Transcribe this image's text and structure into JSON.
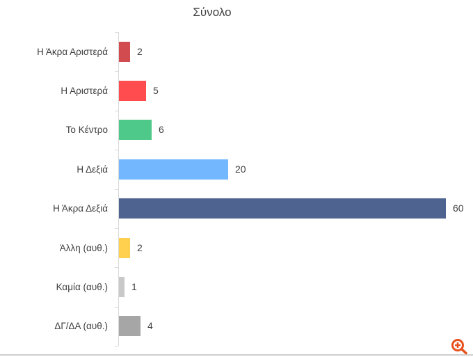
{
  "chart_data": {
    "type": "bar",
    "orientation": "horizontal",
    "title": "Σύνολο",
    "xlabel": "",
    "ylabel": "",
    "xlim": [
      0,
      60
    ],
    "grid": false,
    "legend": null,
    "data_labels": true,
    "categories": [
      "Η Άκρα Αριστερά",
      "Η Αριστερά",
      "Το Κέντρο",
      "Η Δεξιά",
      "Η Άκρα Δεξιά",
      "Άλλη (αυθ.)",
      "Καμία (αυθ.)",
      "ΔΓ/ΔΑ (αυθ.)"
    ],
    "values": [
      2,
      5,
      6,
      20,
      60,
      2,
      1,
      4
    ],
    "colors": [
      "#d14b4f",
      "#ff4d4f",
      "#4fc98a",
      "#73b8ff",
      "#4f6390",
      "#ffd04d",
      "#c8c8c8",
      "#a6a6a6"
    ]
  },
  "labels": {
    "value_0": "2",
    "value_1": "5",
    "value_2": "6",
    "value_3": "20",
    "value_4": "60",
    "value_5": "2",
    "value_6": "1",
    "value_7": "4"
  },
  "controls": {
    "zoom_icon": "zoom-in-icon",
    "zoom_color": "#e8501e"
  }
}
